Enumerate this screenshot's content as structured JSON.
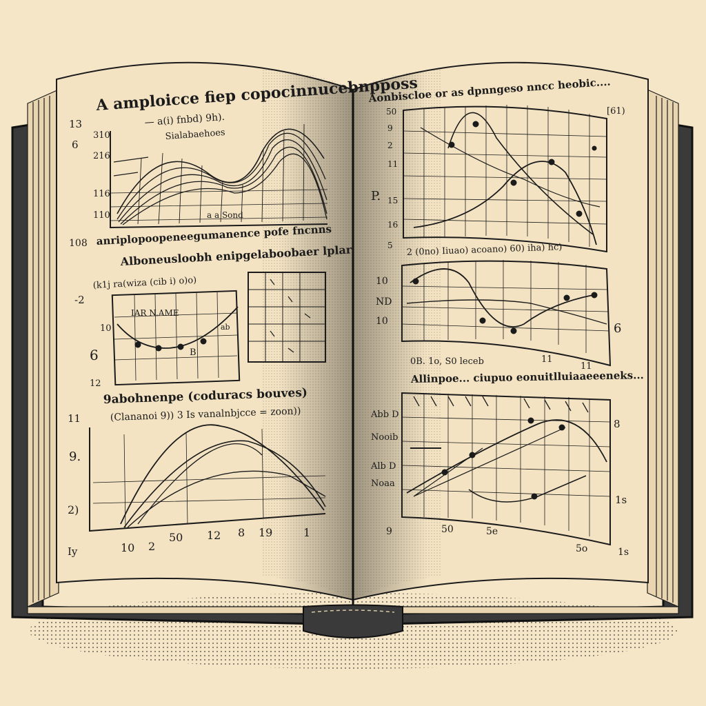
{
  "colors": {
    "background": "#f6e6c8",
    "page": "#f3e3c3",
    "cover": "#3a3a3a",
    "ink": "#1b1b1b"
  },
  "left_page": {
    "heading": "A amploicce fiep copocinnucebnpposs",
    "top_sub_a": "— a(i) fnbd) 9h).",
    "top_sub_b": "Sialabaehoes",
    "top_axis_ticks": [
      "310",
      "216",
      "116",
      "110"
    ],
    "top_side_numbers": [
      "13",
      "6",
      "108"
    ],
    "top_center_label": "a a Sond",
    "caption_1": "anriplopoopeneegumanence pofe fncnns",
    "caption_2": "Alboneusloobh enipgelaboobaer lplar",
    "mid_sub": "(k1j ra(wiza (cib i)  o)o)",
    "mid_ticks": [
      "10",
      "6"
    ],
    "mid_labels": [
      "IAR N.AME",
      "ab",
      "B"
    ],
    "mid_side_numbers": [
      "-2",
      "12"
    ],
    "caption_3": "9abohnenpe (coduracs bouves)",
    "caption_4": "(Clananoi 9)) 3 Is vanalnbjcce = zoon))",
    "bottom_side_numbers": [
      "11",
      "9.",
      "2)",
      "Iy"
    ],
    "bottom_x_ticks": [
      "10",
      "2",
      "50",
      "12",
      "8",
      "19",
      "1"
    ]
  },
  "right_page": {
    "heading": "Aonbiscloe or as dpnngeso nncc heobic....",
    "top_right_number": "[61)",
    "top_side_numbers": [
      "50",
      "9",
      "2",
      "11",
      "P.",
      "15",
      "16",
      "5"
    ],
    "caption_1": "2 (0no) Iiuao)  acoano) 60) iha) hc)",
    "mid_side_numbers": [
      "10",
      "ND",
      "10"
    ],
    "mid_right_number": "6",
    "mid_x_caption": "0B.  1o, S0 leceb",
    "mid_x_numbers": [
      "11",
      "11"
    ],
    "caption_2": "Allinpoe... ciupuo eonuitlluiaaeeeneks...",
    "bottom_side_numbers": [
      "Abb D",
      "Nooib",
      "Alb D",
      "Noaa",
      "9"
    ],
    "bottom_right_numbers": [
      "8",
      "1s"
    ],
    "bottom_x_ticks": [
      "50",
      "5e",
      "5o"
    ],
    "bottom_corner": "1s"
  }
}
